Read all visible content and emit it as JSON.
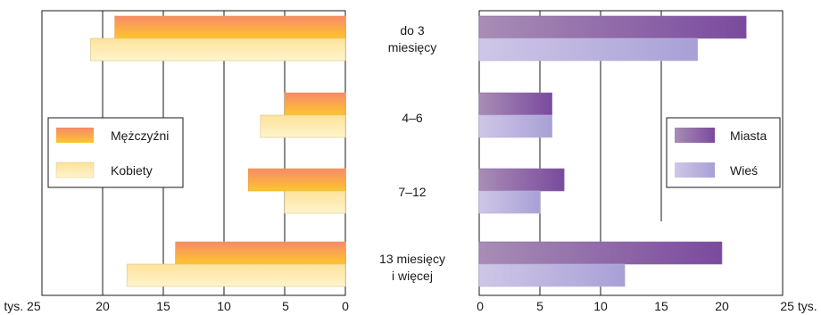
{
  "chart_data": [
    {
      "type": "bar",
      "orientation": "horizontal",
      "x_direction": "reversed",
      "categories": [
        "do 3 miesięcy",
        "4–6",
        "7–12",
        "13 miesięcy i więcej"
      ],
      "series": [
        {
          "name": "Mężczyźni",
          "values": [
            19,
            5,
            8,
            14
          ]
        },
        {
          "name": "Kobiety",
          "values": [
            21,
            7,
            5,
            18
          ]
        }
      ],
      "xlim": [
        0,
        25
      ],
      "xticks": [
        "tys. 25",
        "20",
        "15",
        "10",
        "5",
        "0"
      ],
      "grid": true,
      "legend_position": "middle-left",
      "colors": {
        "Mężczyźni": [
          "#f78a6a",
          "#fdc62c"
        ],
        "Kobiety": [
          "#fde29a",
          "#fff4cc"
        ]
      }
    },
    {
      "type": "bar",
      "orientation": "horizontal",
      "x_direction": "normal",
      "categories": [
        "do 3 miesięcy",
        "4–6",
        "7–12",
        "13 miesięcy i więcej"
      ],
      "series": [
        {
          "name": "Miasta",
          "values": [
            22,
            6,
            7,
            20
          ]
        },
        {
          "name": "Wieś",
          "values": [
            18,
            6,
            5,
            12
          ]
        }
      ],
      "xlim": [
        0,
        25
      ],
      "xticks": [
        "0",
        "5",
        "10",
        "15",
        "20",
        "25 tys."
      ],
      "grid": true,
      "legend_position": "middle-right",
      "colors": {
        "Miasta": [
          "#a88db5",
          "#7a4a9e"
        ],
        "Wieś": [
          "#cfc7e6",
          "#a8a0d6"
        ]
      }
    }
  ],
  "category_labels": [
    [
      "do 3",
      "miesięcy"
    ],
    [
      "4–6"
    ],
    [
      "7–12"
    ],
    [
      "13 miesięcy",
      "i więcej"
    ]
  ]
}
